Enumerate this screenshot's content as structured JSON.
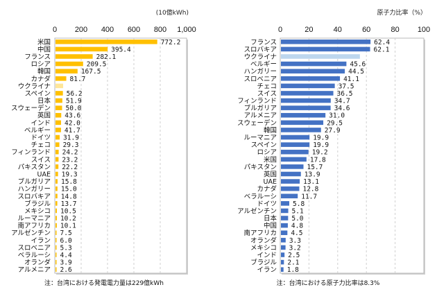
{
  "chart_data": [
    {
      "type": "bar",
      "orientation": "horizontal",
      "title": "",
      "unit_label": "(10億kWh)",
      "xlabel": "",
      "ylabel": "",
      "xlim": [
        0,
        1000
      ],
      "ticks": [
        "0",
        "200",
        "400",
        "600",
        "800",
        "1,000"
      ],
      "tick_values": [
        0,
        200,
        400,
        600,
        800,
        1000
      ],
      "grid": true,
      "bar_color": "#FFC000",
      "highlight_color": "#FFE699",
      "note": "注：台湾における発電電力量は229億kWh",
      "categories": [
        "米国",
        "中国",
        "フランス",
        "ロシア",
        "韓国",
        "カナダ",
        "ウクライナ",
        "スペイン",
        "日本",
        "スウェーデン",
        "英国",
        "インド",
        "ベルギー",
        "ドイツ",
        "チェコ",
        "フィンランド",
        "スイス",
        "パキスタン",
        "UAE",
        "ブルガリア",
        "ハンガリー",
        "スロバキア",
        "ブラジル",
        "メキシコ",
        "ルーマニア",
        "南アフリカ",
        "アルゼンチン",
        "イラン",
        "スロベニア",
        "ベラルーシ",
        "オランダ",
        "アルメニア"
      ],
      "values": [
        772.2,
        395.4,
        282.1,
        209.5,
        167.5,
        81.7,
        58,
        56.2,
        51.9,
        50.0,
        43.6,
        42.0,
        41.7,
        31.9,
        29.3,
        24.2,
        23.2,
        22.2,
        19.3,
        15.8,
        15.0,
        14.8,
        13.7,
        10.5,
        10.2,
        10.1,
        7.5,
        6.0,
        5.3,
        4.4,
        3.9,
        2.6
      ],
      "value_labels": [
        "772.2",
        "395.4",
        "282.1",
        "209.5",
        "167.5",
        "81.7",
        "",
        "56.2",
        "51.9",
        "50.0",
        "43.6",
        "42.0",
        "41.7",
        "31.9",
        "29.3",
        "24.2",
        "23.2",
        "22.2",
        "19.3",
        "15.8",
        "15.0",
        "14.8",
        "13.7",
        "10.5",
        "10.2",
        "10.1",
        "7.5",
        "6.0",
        "5.3",
        "4.4",
        "3.9",
        "2.6"
      ],
      "highlighted": [
        "ウクライナ"
      ]
    },
    {
      "type": "bar",
      "orientation": "horizontal",
      "title": "",
      "unit_label": "原子力比率（%）",
      "xlabel": "",
      "ylabel": "",
      "xlim": [
        0,
        100
      ],
      "ticks": [
        "0",
        "20",
        "40",
        "60",
        "80",
        "100"
      ],
      "tick_values": [
        0,
        20,
        40,
        60,
        80,
        100
      ],
      "grid": true,
      "bar_color": "#4472C4",
      "highlight_color": "#BDD7EE",
      "note": "注：台湾における原子力比率は8.3%",
      "categories": [
        "フランス",
        "スロバキア",
        "ウクライナ",
        "ベルギー",
        "ハンガリー",
        "スロベニア",
        "チェコ",
        "スイス",
        "フィンランド",
        "ブルガリア",
        "アルメニア",
        "スウェーデン",
        "韓国",
        "ルーマニア",
        "スペイン",
        "ロシア",
        "米国",
        "パキスタン",
        "英国",
        "UAE",
        "カナダ",
        "ベラルーシ",
        "ドイツ",
        "アルゼンチン",
        "日本",
        "中国",
        "南アフリカ",
        "オランダ",
        "メキシコ",
        "インド",
        "ブラジル",
        "イラン"
      ],
      "values": [
        62.4,
        62.1,
        55,
        45.6,
        44.5,
        41.1,
        37.5,
        36.5,
        34.7,
        34.6,
        31.0,
        29.5,
        27.9,
        19.9,
        19.9,
        19.2,
        17.8,
        15.7,
        13.9,
        13.1,
        12.8,
        11.7,
        5.8,
        5.1,
        5.0,
        4.8,
        4.5,
        3.3,
        3.2,
        2.5,
        2.1,
        1.8
      ],
      "value_labels": [
        "62.4",
        "62.1",
        "",
        "45.6",
        "44.5",
        "41.1",
        "37.5",
        "36.5",
        "34.7",
        "34.6",
        "31.0",
        "29.5",
        "27.9",
        "19.9",
        "19.9",
        "19.2",
        "17.8",
        "15.7",
        "13.9",
        "13.1",
        "12.8",
        "11.7",
        "5.8",
        "5.1",
        "5.0",
        "4.8",
        "4.5",
        "3.3",
        "3.2",
        "2.5",
        "2.1",
        "1.8"
      ],
      "highlighted": [
        "ウクライナ"
      ]
    }
  ]
}
